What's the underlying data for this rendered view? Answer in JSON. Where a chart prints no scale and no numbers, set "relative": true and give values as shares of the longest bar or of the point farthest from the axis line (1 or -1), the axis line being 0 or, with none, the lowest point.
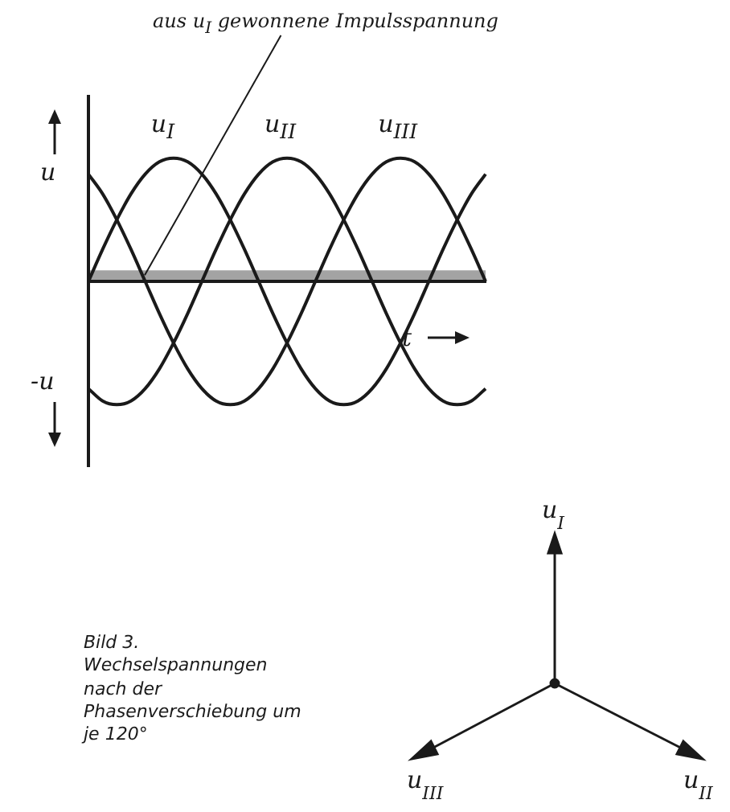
{
  "chart_data": {
    "type": "line",
    "relative": true,
    "xlabel": "t",
    "ylabel": "u",
    "legend": "bottom right",
    "grid": false,
    "marker": "none",
    "line_style": "solid",
    "categories": [
      null,
      null,
      null,
      null,
      null,
      null,
      null,
      null,
      null,
      null,
      null,
      null,
      null,
      null,
      null,
      null,
      null,
      null,
      null,
      null,
      null,
      null,
      null,
      null,
      null,
      null,
      null,
      null,
      null
    ],
    "series": [
      {
        "name": "u$_{I}$",
        "color": "#1a1a1a",
        "values": [
          0,
          0.26,
          0.5,
          0.71,
          0.87,
          0.97,
          1,
          0.97,
          0.87,
          0.71,
          0.5,
          0.26,
          0,
          -0.26,
          -0.5,
          -0.71,
          -0.87,
          -0.97,
          -1,
          -0.97,
          -0.87,
          -0.71,
          -0.5,
          -0.26,
          0,
          0.26,
          0.5,
          0.71,
          0.87
        ]
      },
      {
        "name": "u$_{II}$",
        "color": "#1a1a1a",
        "values": [
          -0.87,
          -0.97,
          -1,
          -0.97,
          -0.87,
          -0.71,
          -0.5,
          -0.26,
          0,
          0.26,
          0.5,
          0.71,
          0.87,
          0.97,
          1,
          0.97,
          0.87,
          0.71,
          0.5,
          0.26,
          0,
          -0.26,
          -0.5,
          -0.71,
          -0.87,
          -0.97,
          -1,
          -0.97,
          -0.87
        ]
      },
      {
        "name": "u$_{III}$",
        "color": "#1a1a1a",
        "values": [
          0.87,
          0.71,
          0.5,
          0.26,
          0,
          -0.26,
          -0.5,
          -0.71,
          -0.87,
          -0.97,
          -1,
          -0.97,
          -0.87,
          -0.71,
          -0.5,
          -0.26,
          0,
          0.26,
          0.5,
          0.71,
          0.87,
          0.97,
          1,
          0.97,
          0.87,
          0.71,
          0.5,
          0.26,
          0
        ]
      }
    ],
    "bands": [
      {
        "axis": "y",
        "from": 0,
        "to": 0.09,
        "color": "#1a1a1a"
      }
    ],
    "annotations": [
      "aus u$_{I}$ gewonnene Impulsspannung",
      "-u",
      "Bild 3. Wechselspannungen nach der Phasenverschiebung um je 120°"
    ]
  }
}
